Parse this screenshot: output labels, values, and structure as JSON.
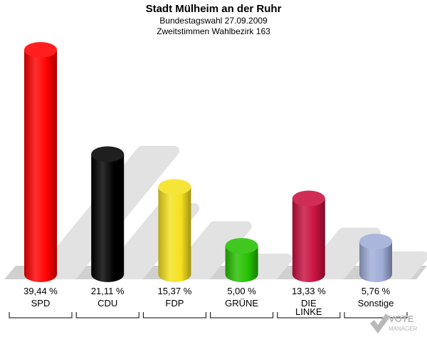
{
  "header": {
    "title": "Stadt Mülheim an der Ruhr",
    "subtitle1": "Bundestagswahl 27.09.2009",
    "subtitle2": "Zweitstimmen Wahlbezirk 163"
  },
  "logo": {
    "line1": "VOTE",
    "line2": "MANAGER"
  },
  "chart_data": {
    "type": "bar",
    "title": "Stadt Mülheim an der Ruhr",
    "subtitle": "Bundestagswahl 27.09.2009 / Zweitstimmen Wahlbezirk 163",
    "categories": [
      "SPD",
      "CDU",
      "FDP",
      "GRÜNE",
      "DIE LINKE",
      "Sonstige"
    ],
    "category_lines": [
      [
        "SPD"
      ],
      [
        "CDU"
      ],
      [
        "FDP"
      ],
      [
        "GRÜNE"
      ],
      [
        "DIE",
        "LINKE"
      ],
      [
        "Sonstige"
      ]
    ],
    "values": [
      39.44,
      21.11,
      15.37,
      5.0,
      13.33,
      5.76
    ],
    "value_labels": [
      "39,44 %",
      "21,11 %",
      "15,37 %",
      "5,00 %",
      "13,33 %",
      "5,76 %"
    ],
    "colors": [
      "#ff0000",
      "#000000",
      "#f5e11e",
      "#26c000",
      "#c8103f",
      "#a0acd8"
    ],
    "unit": "%",
    "ylim": [
      0,
      39.44
    ],
    "grid": false
  }
}
